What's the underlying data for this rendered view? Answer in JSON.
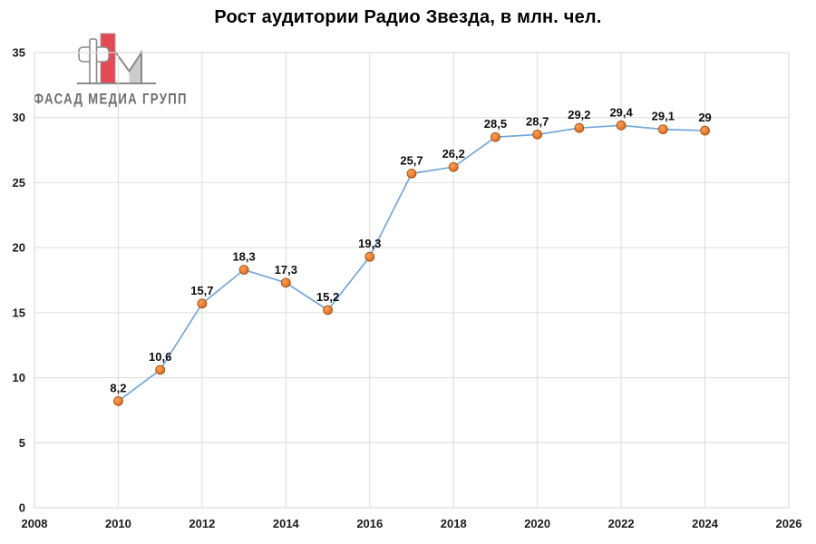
{
  "logo": {
    "text": "ФАСАД МЕДИА ГРУПП",
    "mark": "fm-monogram"
  },
  "colors": {
    "background": "#ffffff",
    "line": "#74a7da",
    "marker_fill": "#ed7d31",
    "marker_fill_light": "#f7a35c",
    "marker_fill_dark": "#c2601a",
    "marker_edge": "#9c5217",
    "grid": "#dcdcdc",
    "axis_text": "#1a1a1a",
    "label_text": "#0d0d0d",
    "title_text": "#000000",
    "logo_red": "#e64955",
    "logo_gray": "#6e6e6e",
    "logo_outline": "#8a8a8a",
    "logo_shade": "#cccccc"
  },
  "chart_data": {
    "type": "line",
    "title": "Рост аудитории Радио Звезда, в млн. чел.",
    "x": [
      2010,
      2011,
      2012,
      2013,
      2014,
      2015,
      2016,
      2017,
      2018,
      2019,
      2020,
      2021,
      2022,
      2023,
      2024
    ],
    "values": [
      8.2,
      10.6,
      15.7,
      18.3,
      17.3,
      15.2,
      19.3,
      25.7,
      26.2,
      28.5,
      28.7,
      29.2,
      29.4,
      29.1,
      29
    ],
    "point_labels": [
      "8,2",
      "10,6",
      "15,7",
      "18,3",
      "17,3",
      "15,2",
      "19,3",
      "25,7",
      "26,2",
      "28,5",
      "28,7",
      "29,2",
      "29,4",
      "29,1",
      "29"
    ],
    "xlabel": "",
    "ylabel": "",
    "xlim": [
      2008,
      2026
    ],
    "ylim": [
      0,
      35
    ],
    "x_ticks": [
      2008,
      2010,
      2012,
      2014,
      2016,
      2018,
      2020,
      2022,
      2024,
      2026
    ],
    "y_ticks": [
      0,
      5,
      10,
      15,
      20,
      25,
      30,
      35
    ],
    "grid": true,
    "legend": "none",
    "marker": "circle",
    "data_labels_position": "above"
  }
}
